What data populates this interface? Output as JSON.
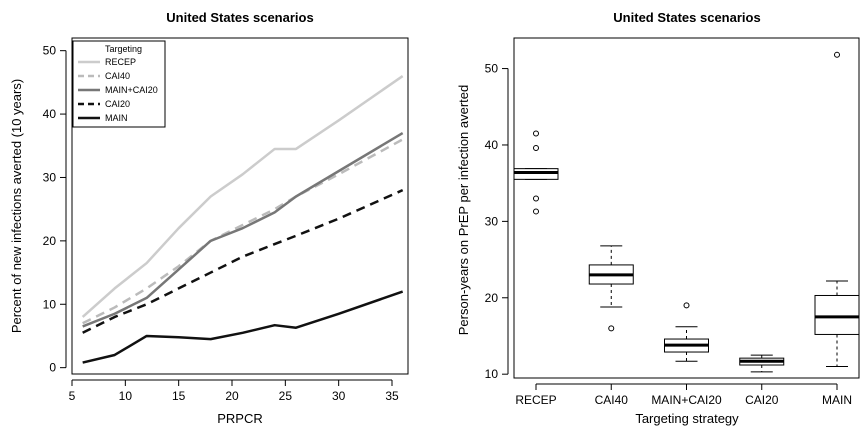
{
  "chart_data": [
    {
      "type": "line",
      "title": "United States scenarios",
      "xlabel": "PRPCR",
      "ylabel": "Percent of new infections averted (10 years)",
      "xlim": [
        5,
        36.5
      ],
      "ylim": [
        -1,
        52
      ],
      "xticks": [
        5,
        10,
        15,
        20,
        25,
        30,
        35
      ],
      "yticks": [
        0,
        10,
        20,
        30,
        40,
        50
      ],
      "legend": {
        "title": "Targeting",
        "placement": "top-left"
      },
      "series": [
        {
          "name": "RECEP",
          "color": "#cccccc",
          "dash": "solid",
          "width": 2.5,
          "x": [
            6,
            9,
            12,
            15,
            18,
            21,
            24,
            26,
            30,
            36
          ],
          "y": [
            8,
            12.5,
            16.5,
            22,
            27,
            30.5,
            34.5,
            34.5,
            39,
            46
          ]
        },
        {
          "name": "CAI40",
          "color": "#bbbbbb",
          "dash": "dashed",
          "width": 2.5,
          "x": [
            6,
            9,
            12,
            15,
            18,
            21,
            24,
            26,
            30,
            36
          ],
          "y": [
            7,
            9.5,
            12.5,
            16,
            20,
            22.5,
            25,
            27,
            30.5,
            36
          ]
        },
        {
          "name": "MAIN+CAI20",
          "color": "#777777",
          "dash": "solid",
          "width": 2.5,
          "x": [
            6,
            9,
            12,
            15,
            18,
            21,
            24,
            26,
            30,
            36
          ],
          "y": [
            6.5,
            8.5,
            11,
            15.5,
            20,
            22,
            24.5,
            27,
            31,
            37
          ]
        },
        {
          "name": "CAI20",
          "color": "#111111",
          "dash": "dashed",
          "width": 2.5,
          "x": [
            6,
            9,
            12,
            15,
            18,
            21,
            24,
            26,
            30,
            36
          ],
          "y": [
            5.5,
            8,
            10,
            12.5,
            15,
            17.5,
            19.5,
            20.8,
            23.5,
            28
          ]
        },
        {
          "name": "MAIN",
          "color": "#111111",
          "dash": "solid",
          "width": 2.5,
          "x": [
            6,
            9,
            12,
            15,
            18,
            21,
            24,
            26,
            30,
            36
          ],
          "y": [
            0.8,
            2,
            5,
            4.8,
            4.5,
            5.5,
            6.7,
            6.3,
            8.5,
            12
          ]
        }
      ]
    },
    {
      "type": "box",
      "title": "United States scenarios",
      "xlabel": "Targeting strategy",
      "ylabel": "Person-years on PrEP per infection averted",
      "ylim": [
        9.5,
        54
      ],
      "yticks": [
        10,
        20,
        30,
        40,
        50
      ],
      "boxes": [
        {
          "category": "RECEP",
          "whisker_low": 35.5,
          "q1": 35.5,
          "median": 36.4,
          "q3": 36.9,
          "whisker_high": 36.9,
          "outliers": [
            31.3,
            33,
            39.6,
            41.5
          ]
        },
        {
          "category": "CAI40",
          "whisker_low": 18.8,
          "q1": 21.8,
          "median": 23,
          "q3": 24.3,
          "whisker_high": 26.8,
          "outliers": [
            16
          ]
        },
        {
          "category": "MAIN+CAI20",
          "whisker_low": 11.7,
          "q1": 12.9,
          "median": 13.8,
          "q3": 14.6,
          "whisker_high": 16.2,
          "outliers": [
            19
          ]
        },
        {
          "category": "CAI20",
          "whisker_low": 10.3,
          "q1": 11.2,
          "median": 11.7,
          "q3": 12.1,
          "whisker_high": 12.5,
          "outliers": []
        },
        {
          "category": "MAIN",
          "whisker_low": 11,
          "q1": 15.2,
          "median": 17.5,
          "q3": 20.3,
          "whisker_high": 22.2,
          "outliers": [
            51.8
          ]
        }
      ]
    }
  ]
}
